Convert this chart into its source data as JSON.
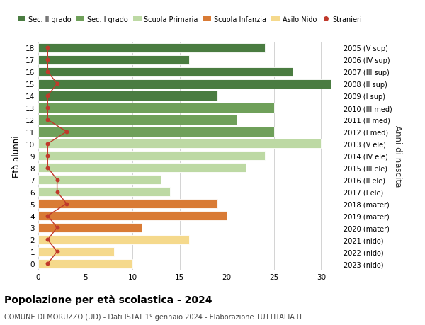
{
  "ages": [
    18,
    17,
    16,
    15,
    14,
    13,
    12,
    11,
    10,
    9,
    8,
    7,
    6,
    5,
    4,
    3,
    2,
    1,
    0
  ],
  "labels_right": [
    "2005 (V sup)",
    "2006 (IV sup)",
    "2007 (III sup)",
    "2008 (II sup)",
    "2009 (I sup)",
    "2010 (III med)",
    "2011 (II med)",
    "2012 (I med)",
    "2013 (V ele)",
    "2014 (IV ele)",
    "2015 (III ele)",
    "2016 (II ele)",
    "2017 (I ele)",
    "2018 (mater)",
    "2019 (mater)",
    "2020 (mater)",
    "2021 (nido)",
    "2022 (nido)",
    "2023 (nido)"
  ],
  "bar_values": [
    24,
    16,
    27,
    31,
    19,
    25,
    21,
    25,
    30,
    24,
    22,
    13,
    14,
    19,
    20,
    11,
    16,
    8,
    10
  ],
  "bar_colors": [
    "#4a7c41",
    "#4a7c41",
    "#4a7c41",
    "#4a7c41",
    "#4a7c41",
    "#6fa05a",
    "#6fa05a",
    "#6fa05a",
    "#bdd9a4",
    "#bdd9a4",
    "#bdd9a4",
    "#bdd9a4",
    "#bdd9a4",
    "#d97b35",
    "#d97b35",
    "#d97b35",
    "#f5d98c",
    "#f5d98c",
    "#f5d98c"
  ],
  "stranieri_values": [
    1,
    1,
    1,
    2,
    1,
    1,
    1,
    3,
    1,
    1,
    1,
    2,
    2,
    3,
    1,
    2,
    1,
    2,
    1
  ],
  "title": "Popolazione per età scolastica - 2024",
  "subtitle": "COMUNE DI MORUZZO (UD) - Dati ISTAT 1° gennaio 2024 - Elaborazione TUTTITALIA.IT",
  "ylabel": "Età alunni",
  "right_label": "Anni di nascita",
  "legend_labels": [
    "Sec. II grado",
    "Sec. I grado",
    "Scuola Primaria",
    "Scuola Infanzia",
    "Asilo Nido",
    "Stranieri"
  ],
  "legend_colors": [
    "#4a7c41",
    "#6fa05a",
    "#bdd9a4",
    "#d97b35",
    "#f5d98c",
    "#c0392b"
  ],
  "xlim": [
    0,
    32
  ],
  "xticks": [
    0,
    5,
    10,
    15,
    20,
    25,
    30
  ],
  "background_color": "#ffffff",
  "grid_color": "#cccccc",
  "bar_height": 0.78
}
